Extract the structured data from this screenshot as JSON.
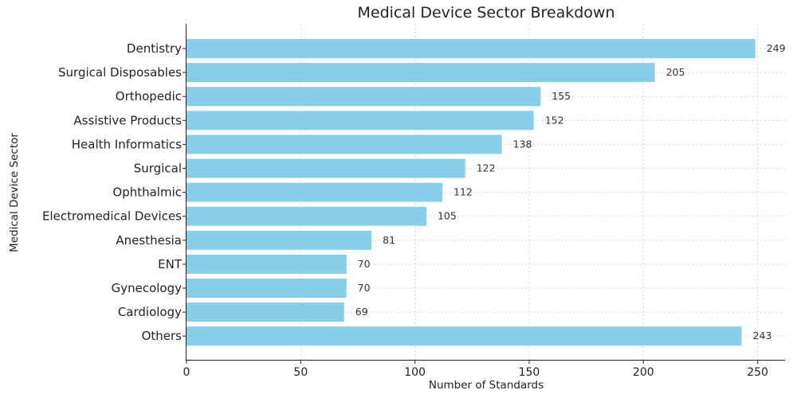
{
  "chart_data": {
    "type": "bar",
    "orientation": "horizontal",
    "title": "Medical Device Sector Breakdown",
    "xlabel": "Number of Standards",
    "ylabel": "Medical Device Sector",
    "xlim": [
      0,
      262
    ],
    "xticks": [
      0,
      50,
      100,
      150,
      200,
      250
    ],
    "grid": true,
    "bar_color": "#87ceeb",
    "categories": [
      "Dentistry",
      "Surgical Disposables",
      "Orthopedic",
      "Assistive Products",
      "Health Informatics",
      "Surgical",
      "Ophthalmic",
      "Electromedical Devices",
      "Anesthesia",
      "ENT",
      "Gynecology",
      "Cardiology",
      "Others"
    ],
    "values": [
      249,
      205,
      155,
      152,
      138,
      122,
      112,
      105,
      81,
      70,
      70,
      69,
      243
    ]
  }
}
